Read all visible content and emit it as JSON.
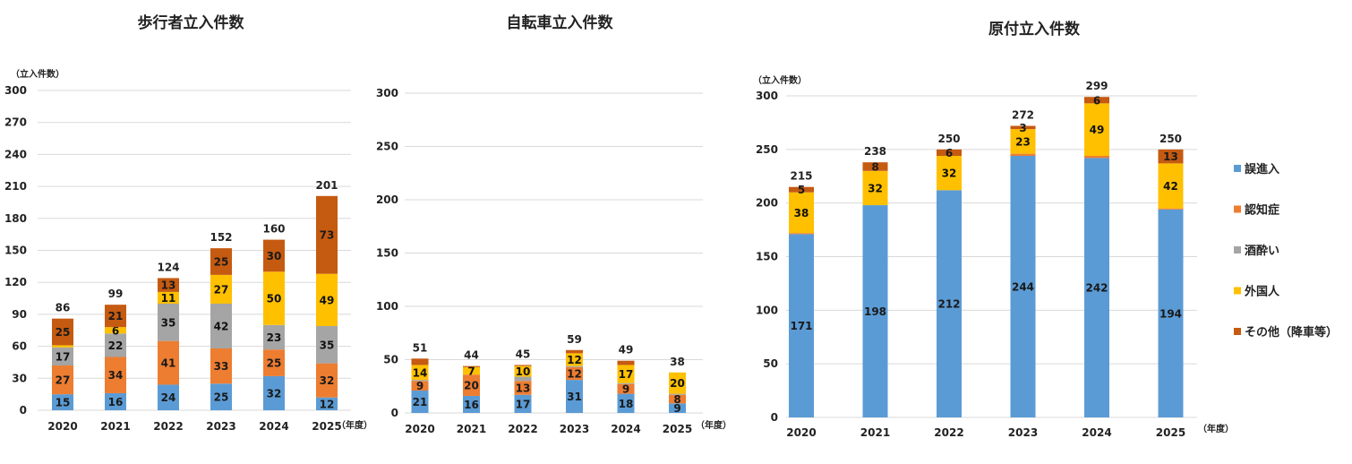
{
  "series_colors": {
    "誤進入": "#5b9bd5",
    "認知症": "#ed7d31",
    "酒酔い": "#a5a5a5",
    "外国人": "#ffc000",
    "その他（降車等）": "#c55a11"
  },
  "legend": [
    "誤進入",
    "認知症",
    "酒酔い",
    "外国人",
    "その他（降車等）"
  ],
  "chart_data": [
    {
      "type": "bar",
      "stacked": true,
      "title": "歩行者立入件数",
      "ylabel": "（立入件数）",
      "xlabel": "（年度）",
      "ylim": [
        0,
        300
      ],
      "yticks": [
        0,
        30,
        60,
        90,
        120,
        150,
        180,
        210,
        240,
        270,
        300
      ],
      "categories": [
        "2020",
        "2021",
        "2022",
        "2023",
        "2024",
        "2025"
      ],
      "totals": [
        86,
        99,
        124,
        152,
        160,
        201
      ],
      "series": [
        {
          "name": "誤進入",
          "values": [
            15,
            16,
            24,
            25,
            32,
            12
          ]
        },
        {
          "name": "認知症",
          "values": [
            27,
            34,
            41,
            33,
            25,
            32
          ]
        },
        {
          "name": "酒酔い",
          "values": [
            17,
            22,
            35,
            42,
            23,
            35
          ]
        },
        {
          "name": "外国人",
          "values": [
            2,
            6,
            11,
            27,
            50,
            49
          ]
        },
        {
          "name": "その他（降車等）",
          "values": [
            25,
            21,
            13,
            25,
            30,
            73
          ]
        }
      ]
    },
    {
      "type": "bar",
      "stacked": true,
      "title": "自転車立入件数",
      "ylabel": "",
      "xlabel": "（年度）",
      "ylim": [
        0,
        300
      ],
      "yticks": [
        0,
        50,
        100,
        150,
        200,
        250,
        300
      ],
      "categories": [
        "2020",
        "2021",
        "2022",
        "2023",
        "2024",
        "2025"
      ],
      "totals": [
        51,
        44,
        45,
        59,
        49,
        38
      ],
      "series": [
        {
          "name": "誤進入",
          "values": [
            21,
            16,
            17,
            31,
            18,
            9
          ]
        },
        {
          "name": "認知症",
          "values": [
            9,
            20,
            13,
            12,
            9,
            8
          ]
        },
        {
          "name": "酒酔い",
          "values": [
            1,
            0,
            4,
            1,
            1,
            1
          ]
        },
        {
          "name": "外国人",
          "values": [
            14,
            7,
            10,
            12,
            17,
            20
          ]
        },
        {
          "name": "その他（降車等）",
          "values": [
            6,
            1,
            1,
            3,
            4,
            0
          ]
        }
      ]
    },
    {
      "type": "bar",
      "stacked": true,
      "title": "原付立入件数",
      "ylabel": "（立入件数）",
      "xlabel": "（年度）",
      "ylim": [
        0,
        300
      ],
      "yticks": [
        0,
        50,
        100,
        150,
        200,
        250,
        300
      ],
      "categories": [
        "2020",
        "2021",
        "2022",
        "2023",
        "2024",
        "2025"
      ],
      "totals": [
        215,
        238,
        250,
        272,
        299,
        250
      ],
      "series": [
        {
          "name": "誤進入",
          "values": [
            171,
            198,
            212,
            244,
            242,
            194
          ]
        },
        {
          "name": "認知症",
          "values": [
            1,
            0,
            0,
            2,
            2,
            1
          ]
        },
        {
          "name": "酒酔い",
          "values": [
            0,
            0,
            0,
            0,
            0,
            0
          ]
        },
        {
          "name": "外国人",
          "values": [
            38,
            32,
            32,
            23,
            49,
            42
          ]
        },
        {
          "name": "その他（降車等）",
          "values": [
            5,
            8,
            6,
            3,
            6,
            13
          ]
        }
      ]
    }
  ]
}
